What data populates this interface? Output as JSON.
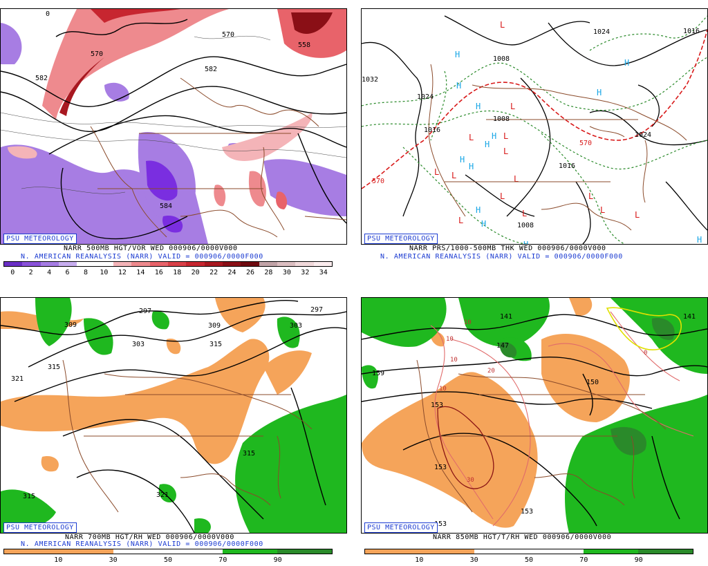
{
  "panels": {
    "top_left": {
      "badge": "PSU METEOROLOGY",
      "line1": "NARR 500MB HGT/VOR WED 000906/0000V000",
      "line2": "N. AMERICAN REANALYSIS (NARR) VALID = 000906/0000F000",
      "scale_ticks": [
        "0",
        "2",
        "4",
        "6",
        "8",
        "10",
        "12",
        "14",
        "16",
        "18",
        "20",
        "22",
        "24",
        "26",
        "28",
        "30",
        "32",
        "34"
      ],
      "contour_labels": [
        "582",
        "570",
        "582",
        "584",
        "558",
        "570",
        "0"
      ],
      "colors": [
        "#6a2fc6",
        "#8a52da",
        "#a67ce4",
        "#c8aeef",
        "#ffffff",
        "#ffffff",
        "#f4b4b8",
        "#ee8a8e",
        "#e8636a",
        "#d94048",
        "#c72630",
        "#a81820",
        "#8a0f16",
        "#6e0a0f",
        "#c2a4a8",
        "#dcbfc2",
        "#f1d9db",
        "#fbecee"
      ]
    },
    "top_right": {
      "badge": "PSU METEOROLOGY",
      "line1": "NARR PRS/1000-500MB THK WED 000906/0000V000",
      "line2": "N. AMERICAN REANALYSIS (NARR) VALID = 000906/0000F000",
      "contour_labels": [
        "1008",
        "1024",
        "1032",
        "1024",
        "1008",
        "1016",
        "1008",
        "1016",
        "570",
        "570",
        "1024",
        "1016"
      ],
      "high_symbol": "H",
      "low_symbol": "L"
    },
    "bottom_left": {
      "badge": "PSU METEOROLOGY",
      "line1": "NARR 700MB HGT/RH WED 000906/0000V000",
      "line2": "N. AMERICAN REANALYSIS (NARR) VALID = 000906/0000F000",
      "scale_ticks": [
        "10",
        "30",
        "50",
        "70",
        "90"
      ],
      "contour_labels": [
        "309",
        "297",
        "303",
        "309",
        "297",
        "303",
        "315",
        "321",
        "315",
        "315",
        "321"
      ]
    },
    "bottom_right": {
      "badge": "PSU METEOROLOGY",
      "line1": "NARR 850MB HGT/T/RH WED 000906/0000V000",
      "scale_ticks": [
        "10",
        "30",
        "50",
        "70",
        "90"
      ],
      "contour_labels": [
        "141",
        "147",
        "153",
        "159",
        "150",
        "153",
        "153",
        "153",
        "141"
      ],
      "temp_labels": [
        "10",
        "10",
        "10",
        "20",
        "10",
        "30",
        "0"
      ]
    }
  },
  "colors": {
    "orange": "#f5a45a",
    "green": "#1fb81f",
    "green_dark": "#2a8a2a",
    "coast": "#8a4a2a",
    "badge_blue": "#1a3ad1",
    "high_blue": "#1aa7e6",
    "low_red": "#d81818"
  }
}
